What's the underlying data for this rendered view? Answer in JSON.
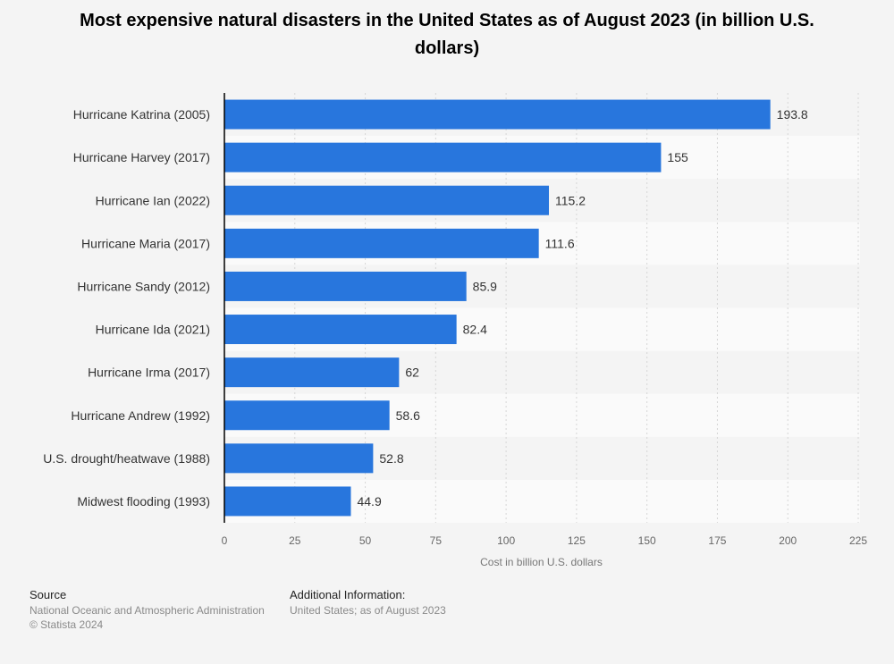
{
  "chart_data": {
    "type": "bar",
    "orientation": "horizontal",
    "title": "Most expensive natural disasters in the United States as of August 2023 (in billion U.S. dollars)",
    "categories": [
      "Hurricane Katrina (2005)",
      "Hurricane Harvey (2017)",
      "Hurricane Ian (2022)",
      "Hurricane Maria (2017)",
      "Hurricane Sandy (2012)",
      "Hurricane Ida (2021)",
      "Hurricane Irma (2017)",
      "Hurricane Andrew (1992)",
      "U.S. drought/heatwave (1988)",
      "Midwest flooding (1993)"
    ],
    "values": [
      193.8,
      155,
      115.2,
      111.6,
      85.9,
      82.4,
      62,
      58.6,
      52.8,
      44.9
    ],
    "data_labels": [
      "193.8",
      "155",
      "115.2",
      "111.6",
      "85.9",
      "82.4",
      "62",
      "58.6",
      "52.8",
      "44.9"
    ],
    "xlabel": "Cost in billion U.S. dollars",
    "ylabel": "",
    "xlim": [
      0,
      225
    ],
    "xticks": [
      "0",
      "25",
      "50",
      "75",
      "100",
      "125",
      "150",
      "175",
      "200",
      "225"
    ],
    "grid": true,
    "bar_color": "#2876dd"
  },
  "footer": {
    "source_heading": "Source",
    "source_text": "National Oceanic and Atmospheric Administration",
    "copyright": "© Statista 2024",
    "additional_heading": "Additional Information:",
    "additional_text": "United States; as of August 2023"
  }
}
